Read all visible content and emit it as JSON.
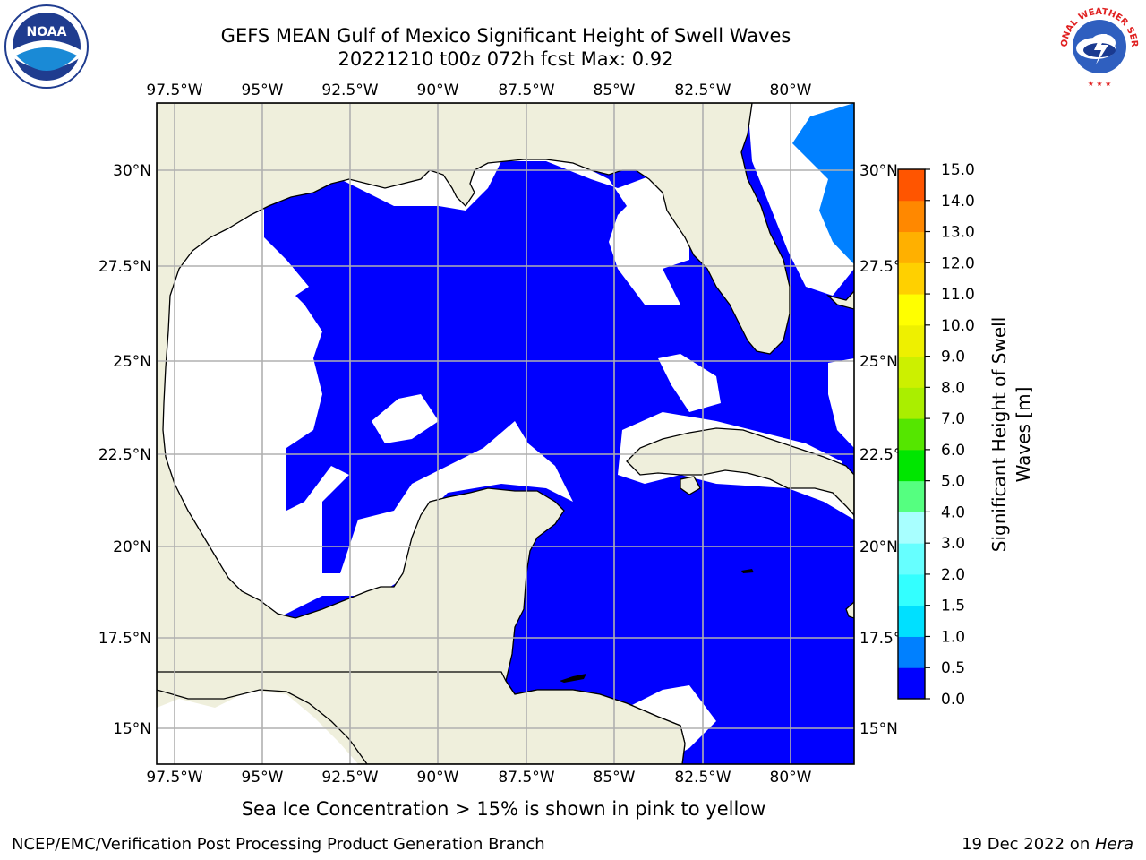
{
  "title": {
    "line1": "GEFS MEAN Gulf of Mexico Significant Height of Swell Waves",
    "line2": "20221210 t00z 072h fcst   Max: 0.92"
  },
  "map": {
    "lon_labels": [
      "97.5°W",
      "95°W",
      "92.5°W",
      "90°W",
      "87.5°W",
      "85°W",
      "82.5°W",
      "80°W"
    ],
    "lat_labels": [
      "30°N",
      "27.5°N",
      "25°N",
      "22.5°N",
      "20°N",
      "17.5°N",
      "15°N"
    ],
    "lon_range": [
      -98,
      -78
    ],
    "lat_range": [
      14,
      31.5
    ],
    "colors": {
      "land": "#efefdc",
      "sea": "#0000ff",
      "no_data": "#ffffff",
      "coast": "#000000",
      "grid": "#b0b0b0",
      "light_blue": "#0080ff"
    }
  },
  "colorbar": {
    "label": "Significant Height of Swell Waves [m]",
    "label_line1": "Significant Height of Swell",
    "label_line2": "Waves [m]",
    "tick_labels": [
      "0.0",
      "0.5",
      "1.0",
      "1.5",
      "2.0",
      "3.0",
      "4.0",
      "5.0",
      "6.0",
      "7.0",
      "8.0",
      "9.0",
      "10.0",
      "11.0",
      "12.0",
      "13.0",
      "14.0",
      "15.0"
    ],
    "colors": [
      "#0000ff",
      "#0080ff",
      "#00e0ff",
      "#33ffff",
      "#66ffff",
      "#a8ffff",
      "#55ff80",
      "#00e600",
      "#55e600",
      "#aaee00",
      "#ccf000",
      "#eef000",
      "#ffff00",
      "#ffd000",
      "#ffb000",
      "#ff8800",
      "#ff5500",
      "#ff2200",
      "#ff0000"
    ]
  },
  "note": "Sea Ice Concentration > 15% is shown in pink to yellow",
  "footer": {
    "left": "NCEP/EMC/Verification Post Processing Product Generation Branch",
    "right_prefix": "19 Dec 2022 on ",
    "right_host": "Hera"
  },
  "logos": {
    "noaa_text": "NOAA",
    "nws_text": "NATIONAL WEATHER SERVICE"
  }
}
